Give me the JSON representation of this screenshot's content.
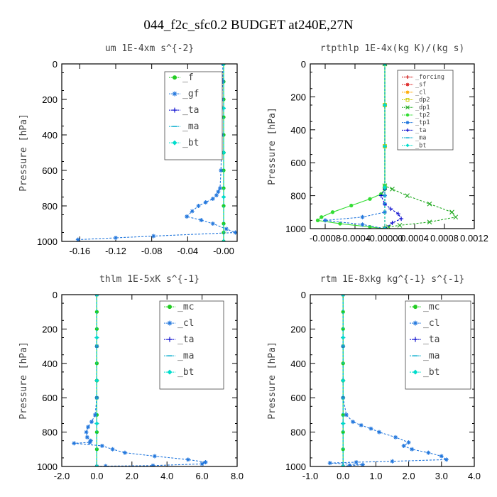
{
  "figure_title": "044_f2c_sfc0.2  BUDGET at240E,27N",
  "chart_data": [
    {
      "type": "line",
      "title": "um  1E-4xm s^{-2}",
      "ylabel": "Pressure [hPa]",
      "xlim": [
        -0.18,
        0.015
      ],
      "ylim": [
        1000,
        0
      ],
      "xticks": [
        -0.16,
        -0.12,
        -0.08,
        -0.04,
        0.0
      ],
      "xtick_labels": [
        "-0.16",
        "-0.12",
        "-0.08",
        "-0.04",
        "-0.00"
      ],
      "yticks": [
        0,
        200,
        400,
        600,
        800,
        1000
      ],
      "legend_position": "top-right",
      "series": [
        {
          "name": "_f",
          "color": "#22cc22",
          "marker": "o",
          "x": [
            0,
            0,
            0,
            0,
            0,
            0,
            0,
            0,
            0,
            0,
            0,
            0
          ],
          "y": [
            0,
            100,
            200,
            300,
            400,
            500,
            600,
            700,
            800,
            900,
            950,
            1000
          ]
        },
        {
          "name": "_gf",
          "color": "#2277dd",
          "marker": "*",
          "x": [
            -0.001,
            -0.001,
            -0.002,
            -0.003,
            -0.003,
            -0.003,
            -0.002,
            -0.003,
            -0.004,
            -0.006,
            -0.008,
            -0.012,
            -0.02,
            -0.028,
            -0.035,
            -0.041,
            -0.025,
            -0.012,
            0.003,
            0.013,
            -0.078,
            -0.12,
            -0.162
          ],
          "y": [
            0,
            100,
            200,
            240,
            255,
            300,
            400,
            600,
            700,
            720,
            740,
            760,
            780,
            800,
            830,
            860,
            880,
            900,
            930,
            950,
            970,
            980,
            990
          ]
        },
        {
          "name": "_ta",
          "color": "#0000cc",
          "marker": "+",
          "x": [
            0,
            0,
            0,
            0,
            0
          ],
          "y": [
            0,
            250,
            500,
            750,
            1000
          ]
        },
        {
          "name": "_ma",
          "color": "#00aacc",
          "marker": "-",
          "x": [
            0,
            0,
            0,
            0,
            0
          ],
          "y": [
            0,
            250,
            500,
            750,
            1000
          ]
        },
        {
          "name": "_bt",
          "color": "#00ddcc",
          "marker": "diamond",
          "x": [
            0,
            0,
            0,
            0,
            0
          ],
          "y": [
            0,
            250,
            500,
            750,
            1000
          ]
        }
      ]
    },
    {
      "type": "line",
      "title": "rtpthlp  1E-4x(kg K)/(kg s)",
      "ylabel": "Pressure [hPa]",
      "xlim": [
        -0.001,
        0.0012
      ],
      "ylim": [
        1000,
        0
      ],
      "xticks": [
        -0.0008,
        -0.0004,
        0.0,
        0.0004,
        0.0008,
        0.0012
      ],
      "xtick_labels": [
        "-0.0008",
        "-0.0004",
        "-0.00000",
        "0.0004",
        "0.0008",
        "0.0012"
      ],
      "yticks": [
        0,
        200,
        400,
        600,
        800,
        1000
      ],
      "legend_position": "top-right",
      "series": [
        {
          "name": "_forcing",
          "color": "#cc0000",
          "marker": "+",
          "x": [
            0,
            0,
            0,
            0,
            0
          ],
          "y": [
            0,
            250,
            500,
            750,
            1000
          ]
        },
        {
          "name": "_sf",
          "color": "#dd2222",
          "marker": "*",
          "x": [
            0,
            0,
            0,
            0,
            0
          ],
          "y": [
            0,
            250,
            500,
            750,
            1000
          ]
        },
        {
          "name": "_cl",
          "color": "#ffaa00",
          "marker": "*",
          "x": [
            0,
            0,
            0,
            0,
            0
          ],
          "y": [
            0,
            250,
            500,
            750,
            1000
          ]
        },
        {
          "name": "_dp2",
          "color": "#cccc00",
          "marker": "square",
          "x": [
            0,
            0,
            0,
            0,
            0
          ],
          "y": [
            0,
            250,
            500,
            750,
            1000
          ]
        },
        {
          "name": "_dp1",
          "color": "#22aa22",
          "marker": "x",
          "x": [
            0,
            0,
            0.0001,
            0.0003,
            0.0006,
            0.0009,
            0.00095,
            0.0006,
            0.0002,
            5e-05,
            0
          ],
          "y": [
            0,
            740,
            760,
            800,
            850,
            900,
            930,
            960,
            980,
            990,
            1000
          ]
        },
        {
          "name": "_tp2",
          "color": "#33dd33",
          "marker": "o",
          "x": [
            0,
            0,
            0,
            -5e-05,
            -0.0002,
            -0.00045,
            -0.0007,
            -0.00085,
            -0.0009,
            -0.0006,
            -0.0002,
            0
          ],
          "y": [
            0,
            740,
            760,
            790,
            820,
            860,
            900,
            930,
            950,
            970,
            990,
            1000
          ]
        },
        {
          "name": "_tp1",
          "color": "#2277dd",
          "marker": "*",
          "x": [
            0,
            0,
            0,
            0,
            -0.0003,
            -0.0008,
            -0.0003,
            0
          ],
          "y": [
            0,
            800,
            850,
            900,
            930,
            950,
            975,
            1000
          ]
        },
        {
          "name": "_ta",
          "color": "#0000cc",
          "marker": "+",
          "x": [
            0,
            0,
            -5e-05,
            0,
            8e-05,
            0.00018,
            0.00022,
            0.0001,
            0
          ],
          "y": [
            0,
            760,
            800,
            850,
            880,
            910,
            940,
            965,
            1000
          ]
        },
        {
          "name": "_ma",
          "color": "#00aacc",
          "marker": "-",
          "x": [
            0,
            0,
            0,
            0,
            0
          ],
          "y": [
            0,
            250,
            500,
            750,
            1000
          ]
        },
        {
          "name": "_bt",
          "color": "#00ddcc",
          "marker": "diamond",
          "x": [
            0,
            0,
            0,
            0,
            0
          ],
          "y": [
            0,
            250,
            500,
            750,
            1000
          ]
        }
      ]
    },
    {
      "type": "line",
      "title": "thlm  1E-5xK s^{-1}",
      "ylabel": "Pressure [hPa]",
      "xlim": [
        -2.0,
        8.0
      ],
      "ylim": [
        1000,
        0
      ],
      "xticks": [
        -2,
        0,
        2,
        4,
        6,
        8
      ],
      "xtick_labels": [
        "-2.0",
        "0.0",
        "2.0",
        "4.0",
        "6.0",
        "8.0"
      ],
      "yticks": [
        0,
        200,
        400,
        600,
        800,
        1000
      ],
      "legend_position": "top-right",
      "series": [
        {
          "name": "_mc",
          "color": "#22cc22",
          "marker": "o",
          "x": [
            0,
            0,
            0,
            0,
            0,
            0,
            0,
            0,
            0,
            0,
            0
          ],
          "y": [
            0,
            100,
            200,
            300,
            400,
            500,
            600,
            700,
            800,
            900,
            1000
          ]
        },
        {
          "name": "_cl",
          "color": "#2277dd",
          "marker": "*",
          "x": [
            0,
            0,
            0,
            -0.1,
            -0.3,
            -0.5,
            -0.6,
            -0.55,
            -0.35,
            -0.4,
            -1.3,
            0.3,
            0.9,
            1.6,
            3.3,
            5.2,
            6.2,
            6.0,
            3.2,
            0.5,
            0
          ],
          "y": [
            0,
            300,
            600,
            700,
            740,
            770,
            800,
            830,
            850,
            860,
            865,
            880,
            900,
            920,
            940,
            960,
            975,
            985,
            995,
            998,
            1000
          ]
        },
        {
          "name": "_ta",
          "color": "#0000cc",
          "marker": "+",
          "x": [
            0,
            0,
            0,
            0,
            0
          ],
          "y": [
            0,
            250,
            500,
            750,
            1000
          ]
        },
        {
          "name": "_ma",
          "color": "#00aacc",
          "marker": "-",
          "x": [
            0,
            0,
            0,
            0,
            0
          ],
          "y": [
            0,
            250,
            500,
            750,
            1000
          ]
        },
        {
          "name": "_bt",
          "color": "#00ddcc",
          "marker": "diamond",
          "x": [
            0,
            0,
            0,
            0,
            0
          ],
          "y": [
            0,
            250,
            500,
            750,
            1000
          ]
        }
      ]
    },
    {
      "type": "line",
      "title": "rtm  1E-8xkg kg^{-1} s^{-1}",
      "ylabel": "Pressure [hPa]",
      "xlim": [
        -1.0,
        4.0
      ],
      "ylim": [
        1000,
        0
      ],
      "xticks": [
        -1,
        0,
        1,
        2,
        3,
        4
      ],
      "xtick_labels": [
        "-1.0",
        "0.0",
        "1.0",
        "2.0",
        "3.0",
        "4.0"
      ],
      "yticks": [
        0,
        200,
        400,
        600,
        800,
        1000
      ],
      "legend_position": "top-right",
      "series": [
        {
          "name": "_mc",
          "color": "#22cc22",
          "marker": "o",
          "x": [
            0,
            0,
            0,
            0,
            0,
            0,
            0,
            0,
            0,
            0,
            0
          ],
          "y": [
            0,
            100,
            200,
            300,
            400,
            500,
            600,
            700,
            800,
            900,
            1000
          ]
        },
        {
          "name": "_cl",
          "color": "#2277dd",
          "marker": "*",
          "x": [
            0,
            0,
            0,
            0.1,
            0.3,
            0.55,
            0.85,
            1.1,
            1.6,
            2.0,
            1.85,
            2.1,
            2.6,
            3.0,
            3.15,
            1.5,
            0.4,
            -0.4,
            0.6,
            0.2,
            0
          ],
          "y": [
            0,
            300,
            600,
            700,
            740,
            760,
            780,
            800,
            830,
            860,
            880,
            900,
            920,
            940,
            960,
            970,
            975,
            980,
            990,
            995,
            1000
          ]
        },
        {
          "name": "_ta",
          "color": "#0000cc",
          "marker": "+",
          "x": [
            0,
            0,
            0,
            0,
            0
          ],
          "y": [
            0,
            250,
            500,
            750,
            1000
          ]
        },
        {
          "name": "_ma",
          "color": "#00aacc",
          "marker": "-",
          "x": [
            0,
            0,
            0,
            0,
            0
          ],
          "y": [
            0,
            250,
            500,
            750,
            1000
          ]
        },
        {
          "name": "_bt",
          "color": "#00ddcc",
          "marker": "diamond",
          "x": [
            0,
            0,
            0,
            0,
            0
          ],
          "y": [
            0,
            250,
            500,
            750,
            1000
          ]
        }
      ]
    }
  ]
}
